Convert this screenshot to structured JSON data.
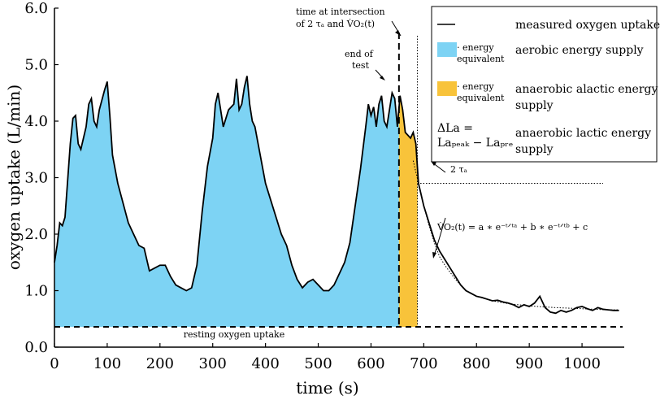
{
  "chart_data": {
    "type": "area",
    "title": "",
    "xlabel": "time (s)",
    "ylabel": "oxygen uptake (L/min)",
    "xlim": [
      0,
      1080
    ],
    "ylim": [
      0,
      6
    ],
    "xticks": [
      0,
      100,
      200,
      300,
      400,
      500,
      600,
      700,
      800,
      900,
      1000
    ],
    "xtick_labels": [
      "0",
      "100",
      "200",
      "300",
      "400",
      "500",
      "600",
      "700",
      "800",
      "900",
      "1000"
    ],
    "yticks": [
      0,
      1,
      2,
      3,
      4,
      5,
      6
    ],
    "ytick_labels": [
      "0.0",
      "1.0",
      "2.0",
      "3.0",
      "4.0",
      "5.0",
      "6.0"
    ],
    "resting_uptake": 0.36,
    "end_of_test": 653,
    "intersection_time": 688,
    "two_tau_level": 2.9,
    "series": [
      {
        "name": "measured oxygen uptake",
        "x": [
          0,
          5,
          10,
          15,
          20,
          30,
          35,
          40,
          45,
          50,
          60,
          65,
          70,
          75,
          80,
          85,
          95,
          100,
          105,
          110,
          120,
          130,
          140,
          150,
          160,
          170,
          180,
          190,
          200,
          210,
          220,
          230,
          240,
          250,
          260,
          270,
          280,
          290,
          300,
          305,
          310,
          320,
          330,
          340,
          345,
          350,
          355,
          360,
          365,
          370,
          375,
          380,
          390,
          400,
          410,
          420,
          430,
          440,
          450,
          460,
          470,
          480,
          490,
          500,
          510,
          520,
          530,
          540,
          550,
          560,
          570,
          580,
          590,
          595,
          600,
          605,
          610,
          615,
          620,
          625,
          630,
          635,
          640,
          645,
          650,
          655,
          660,
          665,
          670,
          675,
          680,
          685,
          690,
          700,
          710,
          720,
          730,
          740,
          750,
          760,
          770,
          780,
          790,
          800,
          810,
          820,
          830,
          840,
          850,
          860,
          870,
          880,
          890,
          900,
          910,
          920,
          930,
          940,
          950,
          960,
          970,
          980,
          990,
          1000,
          1010,
          1020,
          1030,
          1040,
          1050,
          1060,
          1070
        ],
        "y": [
          1.5,
          1.8,
          2.2,
          2.15,
          2.3,
          3.6,
          4.05,
          4.1,
          3.6,
          3.5,
          3.9,
          4.3,
          4.4,
          4.0,
          3.9,
          4.2,
          4.55,
          4.7,
          4.1,
          3.4,
          2.9,
          2.55,
          2.2,
          2.0,
          1.8,
          1.75,
          1.35,
          1.4,
          1.45,
          1.45,
          1.25,
          1.1,
          1.05,
          1.0,
          1.05,
          1.45,
          2.4,
          3.2,
          3.7,
          4.3,
          4.5,
          3.9,
          4.2,
          4.3,
          4.75,
          4.2,
          4.3,
          4.6,
          4.8,
          4.3,
          4.0,
          3.9,
          3.4,
          2.9,
          2.6,
          2.3,
          2.0,
          1.8,
          1.45,
          1.2,
          1.05,
          1.15,
          1.2,
          1.1,
          1.0,
          1.0,
          1.1,
          1.3,
          1.5,
          1.85,
          2.5,
          3.15,
          3.9,
          4.3,
          4.1,
          4.25,
          3.9,
          4.3,
          4.45,
          4.0,
          3.9,
          4.2,
          4.5,
          4.4,
          3.9,
          4.45,
          4.2,
          3.8,
          3.75,
          3.7,
          3.8,
          3.6,
          2.9,
          2.5,
          2.2,
          1.9,
          1.7,
          1.55,
          1.4,
          1.25,
          1.1,
          1.0,
          0.95,
          0.9,
          0.88,
          0.85,
          0.82,
          0.83,
          0.8,
          0.78,
          0.75,
          0.7,
          0.75,
          0.72,
          0.78,
          0.9,
          0.7,
          0.62,
          0.6,
          0.65,
          0.62,
          0.65,
          0.7,
          0.72,
          0.68,
          0.65,
          0.7,
          0.67,
          0.66,
          0.65,
          0.65
        ]
      },
      {
        "name": "model fit",
        "x": [
          680,
          690,
          700,
          710,
          720,
          730,
          740,
          760,
          780,
          800,
          830,
          860,
          900,
          950,
          1000,
          1050,
          1070
        ],
        "y": [
          3.3,
          2.9,
          2.5,
          2.15,
          1.85,
          1.6,
          1.45,
          1.2,
          1.0,
          0.9,
          0.82,
          0.77,
          0.73,
          0.7,
          0.68,
          0.66,
          0.66
        ]
      }
    ],
    "legend": {
      "entries": [
        {
          "symbol": "",
          "label": "measured oxygen uptake"
        },
        {
          "symbol": "· energy equivalent",
          "label": "aerobic energy supply",
          "color": "#7dd3f4"
        },
        {
          "symbol": "· energy equivalent",
          "label": "anaerobic alactic energy supply",
          "color": "#f8c33a"
        },
        {
          "symbol_line1": "ΔLa =",
          "symbol_line2": "Laₚₑₐₖ − Laₚᵣₑ",
          "label": "anaerobic lactic energy supply"
        }
      ]
    },
    "annotations": {
      "intersection_line1": "time at intersection",
      "intersection_line2": "of 2 τₐ and V̇O₂(t)",
      "end_test_line1": "end of",
      "end_test_line2": "test",
      "two_tau": "2 τₐ",
      "equation": "V̇O₂(t) = a ∗ e⁻ᵗᐟᵗᵃ + b ∗ e⁻ᵗᐟᵗᵇ + c",
      "resting": "resting oxygen uptake"
    },
    "colors": {
      "aerobic": "#7dd3f4",
      "alactic": "#f8c33a",
      "line": "#000000"
    }
  }
}
